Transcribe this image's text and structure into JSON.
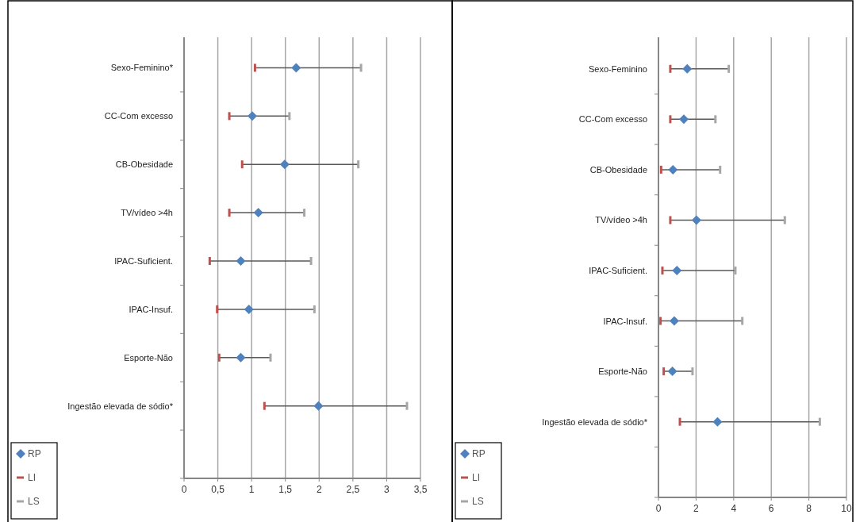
{
  "chart_data": [
    {
      "type": "scatter",
      "orientation": "horizontal",
      "categories": [
        "Sexo-Feminino*",
        "CC-Com excesso",
        "CB-Obesidade",
        "TV/vídeo >4h",
        "IPAC-Suficient.",
        "IPAC-Insuf.",
        "Esporte-Não",
        "Ingestão elevada de sódio*"
      ],
      "xlim": [
        0,
        3.5
      ],
      "xticks": [
        0,
        {
          "value": 0.5,
          "label": "0,5"
        },
        1,
        {
          "value": 1.5,
          "label": "1,5"
        },
        2,
        {
          "value": 2.5,
          "label": "2,5"
        },
        3,
        {
          "value": 3.5,
          "label": "3,5"
        }
      ],
      "grid": "x",
      "legend": "bottom left",
      "series": [
        {
          "name": "RP",
          "color": "#4f81bd",
          "marker": "diamond",
          "values": [
            1.66,
            1.01,
            1.49,
            1.1,
            0.84,
            0.96,
            0.84,
            1.99
          ]
        },
        {
          "name": "LI",
          "color": "#c0504d",
          "values": [
            1.05,
            0.67,
            0.86,
            0.67,
            0.38,
            0.49,
            0.52,
            1.19
          ]
        },
        {
          "name": "LS",
          "color": "#a6a6a6",
          "values": [
            2.62,
            1.56,
            2.58,
            1.78,
            1.88,
            1.93,
            1.28,
            3.3
          ]
        }
      ]
    },
    {
      "type": "scatter",
      "orientation": "horizontal",
      "categories": [
        "Sexo-Feminino",
        "CC-Com excesso",
        "CB-Obesidade",
        "TV/vídeo >4h",
        "IPAC-Suficient.",
        "IPAC-Insuf.",
        "Esporte-Não",
        "Ingestão elevada de sódio*"
      ],
      "xlim": [
        0,
        10
      ],
      "xticks": [
        0,
        2,
        4,
        6,
        8,
        10
      ],
      "grid": "x",
      "legend": "bottom left",
      "series": [
        {
          "name": "RP",
          "color": "#4f81bd",
          "marker": "diamond",
          "values": [
            1.53,
            1.35,
            0.77,
            2.02,
            0.98,
            0.84,
            0.74,
            3.14
          ]
        },
        {
          "name": "LI",
          "color": "#c0504d",
          "values": [
            0.63,
            0.63,
            0.14,
            0.63,
            0.21,
            0.11,
            0.28,
            1.14
          ]
        },
        {
          "name": "LS",
          "color": "#a6a6a6",
          "values": [
            3.74,
            3.03,
            3.28,
            6.72,
            4.09,
            4.46,
            1.81,
            8.58
          ]
        }
      ]
    }
  ]
}
